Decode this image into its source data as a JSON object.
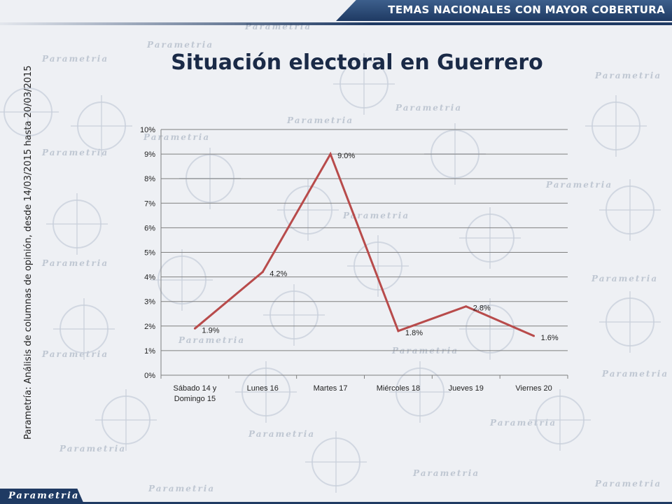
{
  "header": {
    "banner_text": "TEMAS NACIONALES CON MAYOR COBERTURA"
  },
  "title": "Situación electoral en Guerrero",
  "side_source": "Parametría: Análisis de columnas de opinión, desde 14/03/2015 hasta 20/03/2015",
  "footer": {
    "logo_text": "Parametria"
  },
  "watermark": {
    "text": "Parametria"
  },
  "colors": {
    "line": "#b84b4b",
    "brand": "#1f3a63",
    "grid": "#7f7f7f"
  },
  "chart_data": {
    "type": "line",
    "categories": [
      "Sábado 14 y\nDomingo 15",
      "Lunes 16",
      "Martes 17",
      "Miércoles 18",
      "Jueves 19",
      "Viernes 20"
    ],
    "values": [
      1.9,
      4.2,
      9.0,
      1.8,
      2.8,
      1.6
    ],
    "value_labels": [
      "1.9%",
      "4.2%",
      "9.0%",
      "1.8%",
      "2.8%",
      "1.6%"
    ],
    "y_ticks": [
      "0%",
      "1%",
      "2%",
      "3%",
      "4%",
      "5%",
      "6%",
      "7%",
      "8%",
      "9%",
      "10%"
    ],
    "ylim": [
      0,
      10
    ],
    "grid": true,
    "legend": "none"
  }
}
